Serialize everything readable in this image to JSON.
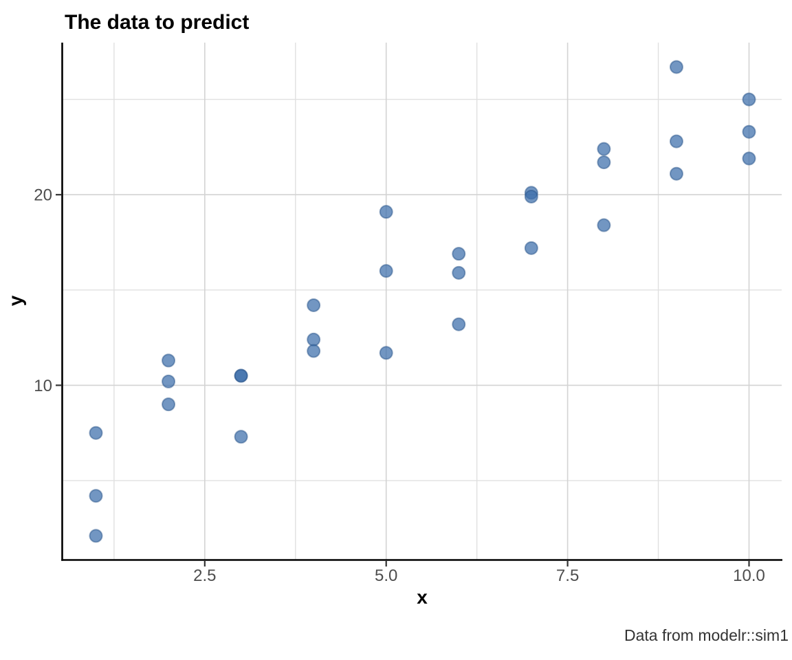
{
  "title": "The data to predict",
  "caption": "Data from modelr::sim1",
  "colors": {
    "point_fill": "#3b6eaa",
    "grid_major": "#d3d3d3",
    "grid_minor": "#e0e0e0",
    "axis_line": "#000000",
    "tick_label": "#4d4d4d",
    "title_text": "#000000"
  },
  "chart_data": {
    "type": "scatter",
    "title": "The data to predict",
    "xlabel": "x",
    "ylabel": "y",
    "caption": "Data from modelr::sim1",
    "xlim": [
      0.55,
      10.45
    ],
    "ylim": [
      0.87,
      27.98
    ],
    "grid": true,
    "legend_position": "none",
    "x_ticks": {
      "major": [
        2.5,
        5.0,
        7.5,
        10.0
      ],
      "minor": [
        1.25,
        3.75,
        6.25,
        8.75
      ],
      "labels": [
        "2.5",
        "5.0",
        "7.5",
        "10.0"
      ]
    },
    "y_ticks": {
      "major": [
        10,
        20
      ],
      "minor": [
        5,
        15,
        25
      ],
      "labels": [
        "10",
        "20"
      ]
    },
    "points": [
      {
        "x": 1,
        "y": 7.5
      },
      {
        "x": 1,
        "y": 4.2
      },
      {
        "x": 1,
        "y": 2.1
      },
      {
        "x": 2,
        "y": 11.3
      },
      {
        "x": 2,
        "y": 10.2
      },
      {
        "x": 2,
        "y": 9.0
      },
      {
        "x": 3,
        "y": 10.5
      },
      {
        "x": 3,
        "y": 10.5
      },
      {
        "x": 3,
        "y": 7.3
      },
      {
        "x": 4,
        "y": 14.2
      },
      {
        "x": 4,
        "y": 12.4
      },
      {
        "x": 4,
        "y": 11.8
      },
      {
        "x": 5,
        "y": 19.1
      },
      {
        "x": 5,
        "y": 16.0
      },
      {
        "x": 5,
        "y": 11.7
      },
      {
        "x": 6,
        "y": 16.9
      },
      {
        "x": 6,
        "y": 15.9
      },
      {
        "x": 6,
        "y": 13.2
      },
      {
        "x": 7,
        "y": 20.1
      },
      {
        "x": 7,
        "y": 19.9
      },
      {
        "x": 7,
        "y": 17.2
      },
      {
        "x": 8,
        "y": 22.4
      },
      {
        "x": 8,
        "y": 21.7
      },
      {
        "x": 8,
        "y": 18.4
      },
      {
        "x": 9,
        "y": 26.7
      },
      {
        "x": 9,
        "y": 22.8
      },
      {
        "x": 9,
        "y": 21.1
      },
      {
        "x": 10,
        "y": 25.0
      },
      {
        "x": 10,
        "y": 23.3
      },
      {
        "x": 10,
        "y": 21.9
      }
    ]
  }
}
